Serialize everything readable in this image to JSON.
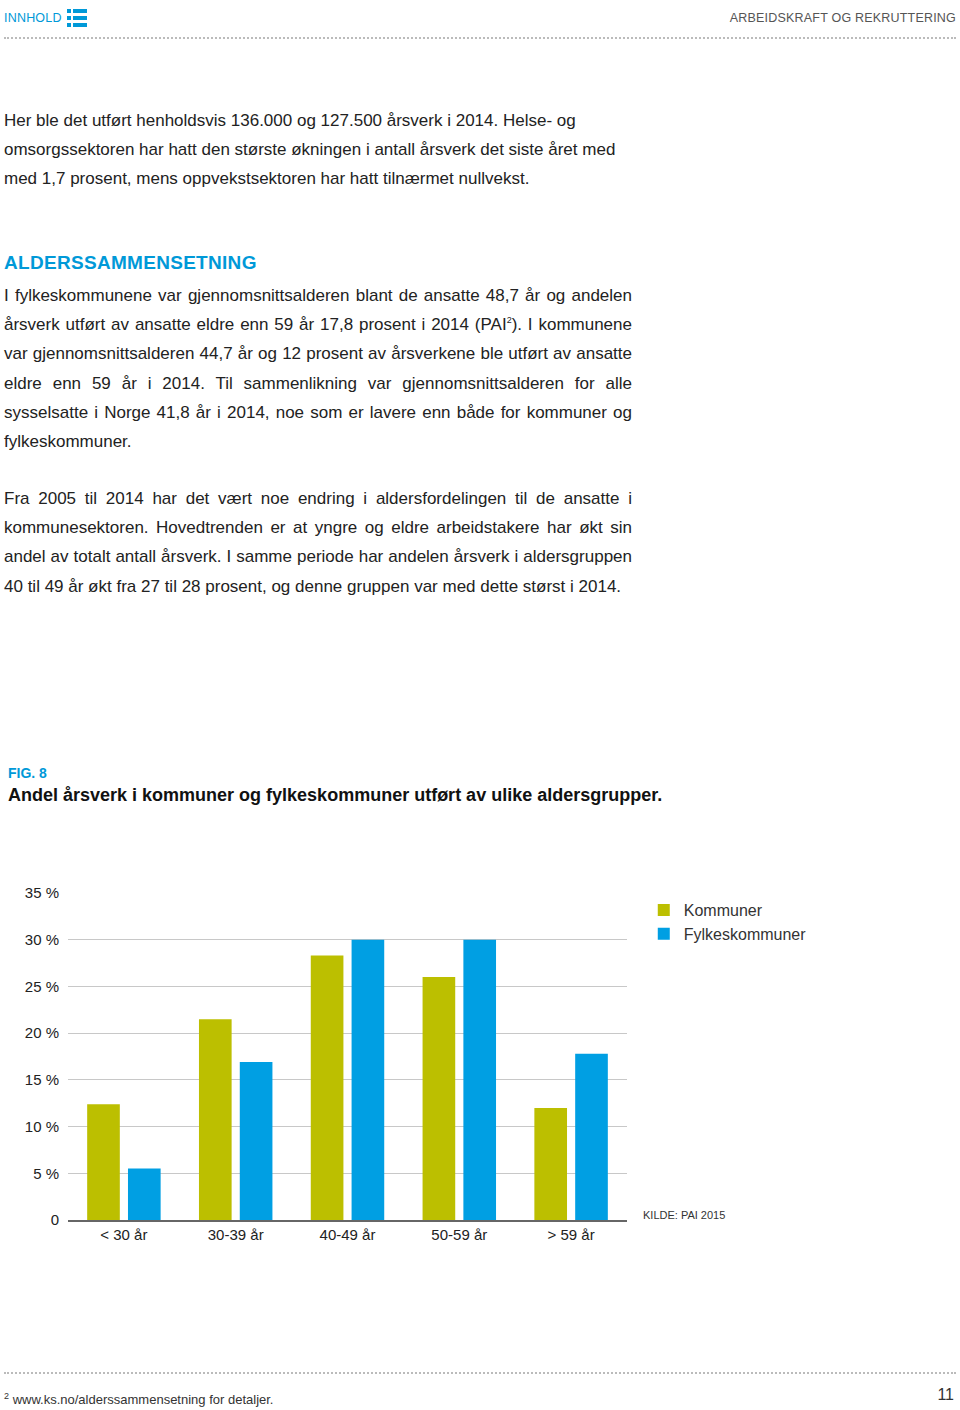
{
  "header": {
    "left": "INNHOLD",
    "right": "ARBEIDSKRAFT OG REKRUTTERING"
  },
  "intro": [
    [
      {
        "text": "Her ble det utført henholdsvis 136.000 og 127.500 årsverk i 2014. Helse- og omsorgssektoren har hatt den største økningen i antall årsverk det siste året med med 1,7 prosent, mens oppvekstsektoren har hatt tilnærmet nullvekst."
      }
    ]
  ],
  "section": {
    "heading": "ALDERSSAMMENSETNING",
    "paragraphs": [
      [
        {
          "text": "I fylkeskommunene var gjennomsnittsalderen blant de ansatte 48,7 år og andelen årsverk utført av ansatte eldre enn 59 år 17,8 prosent i 2014 (PAI"
        },
        {
          "sup": "2"
        },
        {
          "text": "). I kommunene var gjennomsnittsalderen 44,7 år og 12 prosent av årsverkene ble utført av ansatte eldre enn 59 år i 2014. Til sammenlikning var gjennomsnittsalderen for alle sysselsatte i Norge 41,8 år i 2014, noe som er lavere enn både for kommuner og fylkeskommuner."
        }
      ],
      [
        {
          "text": "Fra 2005 til 2014 har det vært noe endring i aldersfordelingen til de ansatte i kommunesektoren. Hovedtrenden er at yngre og eldre arbeidstakere har økt sin andel av totalt antall årsverk. I samme periode har andelen årsverk i aldersgruppen 40 til 49 år økt fra 27 til 28 prosent, og denne gruppen var med dette størst i 2014."
        }
      ]
    ]
  },
  "figure": {
    "label": "FIG. 8",
    "source": "KILDE: PAI 2015"
  },
  "chart_data": {
    "type": "bar",
    "title": "Andel årsverk i kommuner og fylkeskommuner utført av ulike aldersgrupper.",
    "categories": [
      "< 30 år",
      "30-39 år",
      "40-49 år",
      "50-59 år",
      "> 59 år"
    ],
    "series": [
      {
        "name": "Kommuner",
        "color": "#bcbf00",
        "values": [
          12.4,
          21.5,
          28.3,
          26.0,
          12.0
        ]
      },
      {
        "name": "Fylkeskommuner",
        "color": "#009fe3",
        "values": [
          5.5,
          16.9,
          30.0,
          30.0,
          17.8
        ]
      }
    ],
    "ylim": [
      0,
      35
    ],
    "yticks": [
      0,
      {
        "value": 5,
        "label": "5 %"
      },
      {
        "value": 10,
        "label": "10 %"
      },
      {
        "value": 15,
        "label": "15 %"
      },
      {
        "value": 20,
        "label": "20 %"
      },
      {
        "value": 25,
        "label": "25 %"
      },
      {
        "value": 30,
        "label": "30 %"
      },
      {
        "value": 35,
        "label": "35 %"
      }
    ],
    "grid": true,
    "legend": "right"
  },
  "footnote": {
    "marker": "2",
    "text": "www.ks.no/alderssammensetning for detaljer."
  },
  "page_number": "11"
}
